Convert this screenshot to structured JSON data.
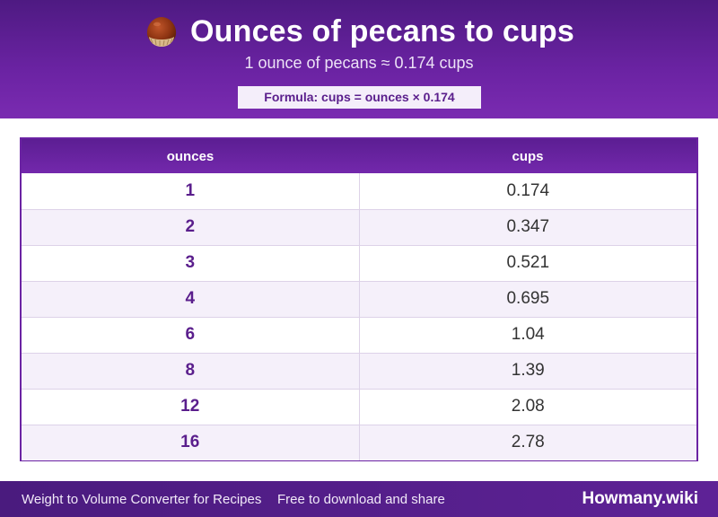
{
  "header": {
    "icon": "chestnut-icon",
    "title": "Ounces of pecans to cups",
    "subtitle": "1 ounce of pecans ≈ 0.174 cups",
    "formula": "Formula: cups = ounces × 0.174"
  },
  "table": {
    "columns": [
      "ounces",
      "cups"
    ],
    "rows": [
      {
        "ounces": "1",
        "cups": "0.174"
      },
      {
        "ounces": "2",
        "cups": "0.347"
      },
      {
        "ounces": "3",
        "cups": "0.521"
      },
      {
        "ounces": "4",
        "cups": "0.695"
      },
      {
        "ounces": "6",
        "cups": "1.04"
      },
      {
        "ounces": "8",
        "cups": "1.39"
      },
      {
        "ounces": "12",
        "cups": "2.08"
      },
      {
        "ounces": "16",
        "cups": "2.78"
      }
    ]
  },
  "footer": {
    "left": "Weight to Volume Converter for Recipes",
    "middle": "Free to download and share",
    "brand": "Howmany.wiki"
  },
  "colors": {
    "accent": "#6b23a3",
    "header_dark": "#4e1a82",
    "row_alt": "#f5f0fa",
    "ounce_text": "#5a1e8c"
  }
}
